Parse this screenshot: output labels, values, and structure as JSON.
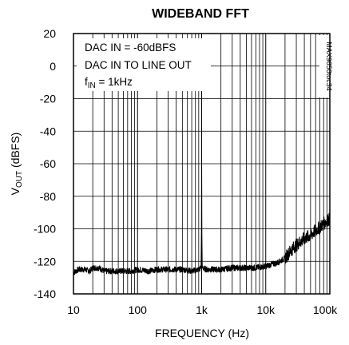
{
  "chart_data": {
    "type": "line",
    "title": "WIDEBAND FFT",
    "xlabel": "FREQUENCY (Hz)",
    "ylabel_main": "V",
    "ylabel_sub": "OUT",
    "ylabel_rest": " (dBFS)",
    "x_scale": "log",
    "xlim": [
      10,
      100000
    ],
    "ylim": [
      -140,
      20
    ],
    "grid": true,
    "x_ticks": [
      {
        "value": 10,
        "label": "10"
      },
      {
        "value": 100,
        "label": "100"
      },
      {
        "value": 1000,
        "label": "1k"
      },
      {
        "value": 10000,
        "label": "10k"
      },
      {
        "value": 100000,
        "label": "100k"
      }
    ],
    "y_ticks": [
      20,
      0,
      -20,
      -40,
      -60,
      -80,
      -100,
      -120,
      -140
    ],
    "annotations": {
      "line1": "DAC IN = -60dBFS",
      "line2": "DAC IN TO LINE OUT",
      "line3_main": "f",
      "line3_sub": "IN",
      "line3_rest": " = 1kHz"
    },
    "figure_code": "MAX9850toc34",
    "series": [
      {
        "color": "#000000",
        "points": [
          [
            10,
            -127
          ],
          [
            12,
            -125
          ],
          [
            15,
            -125
          ],
          [
            18,
            -126
          ],
          [
            20,
            -124
          ],
          [
            25,
            -124
          ],
          [
            30,
            -126
          ],
          [
            40,
            -126
          ],
          [
            50,
            -126
          ],
          [
            60,
            -126
          ],
          [
            80,
            -126
          ],
          [
            100,
            -125
          ],
          [
            150,
            -126
          ],
          [
            200,
            -125
          ],
          [
            300,
            -125
          ],
          [
            500,
            -125
          ],
          [
            700,
            -126
          ],
          [
            900,
            -125
          ],
          [
            980,
            -124
          ],
          [
            995,
            -100
          ],
          [
            1000,
            -62
          ],
          [
            1005,
            -100
          ],
          [
            1020,
            -124
          ],
          [
            1200,
            -125
          ],
          [
            1500,
            -125
          ],
          [
            2000,
            -125
          ],
          [
            3000,
            -124
          ],
          [
            5000,
            -124
          ],
          [
            7000,
            -124
          ],
          [
            10000,
            -123
          ],
          [
            12000,
            -122
          ],
          [
            15000,
            -121
          ],
          [
            20000,
            -118
          ],
          [
            25000,
            -113
          ],
          [
            30000,
            -110
          ],
          [
            40000,
            -106
          ],
          [
            50000,
            -104
          ],
          [
            60000,
            -101
          ],
          [
            70000,
            -99
          ],
          [
            80000,
            -97
          ],
          [
            90000,
            -95
          ],
          [
            100000,
            -94
          ]
        ]
      }
    ]
  }
}
